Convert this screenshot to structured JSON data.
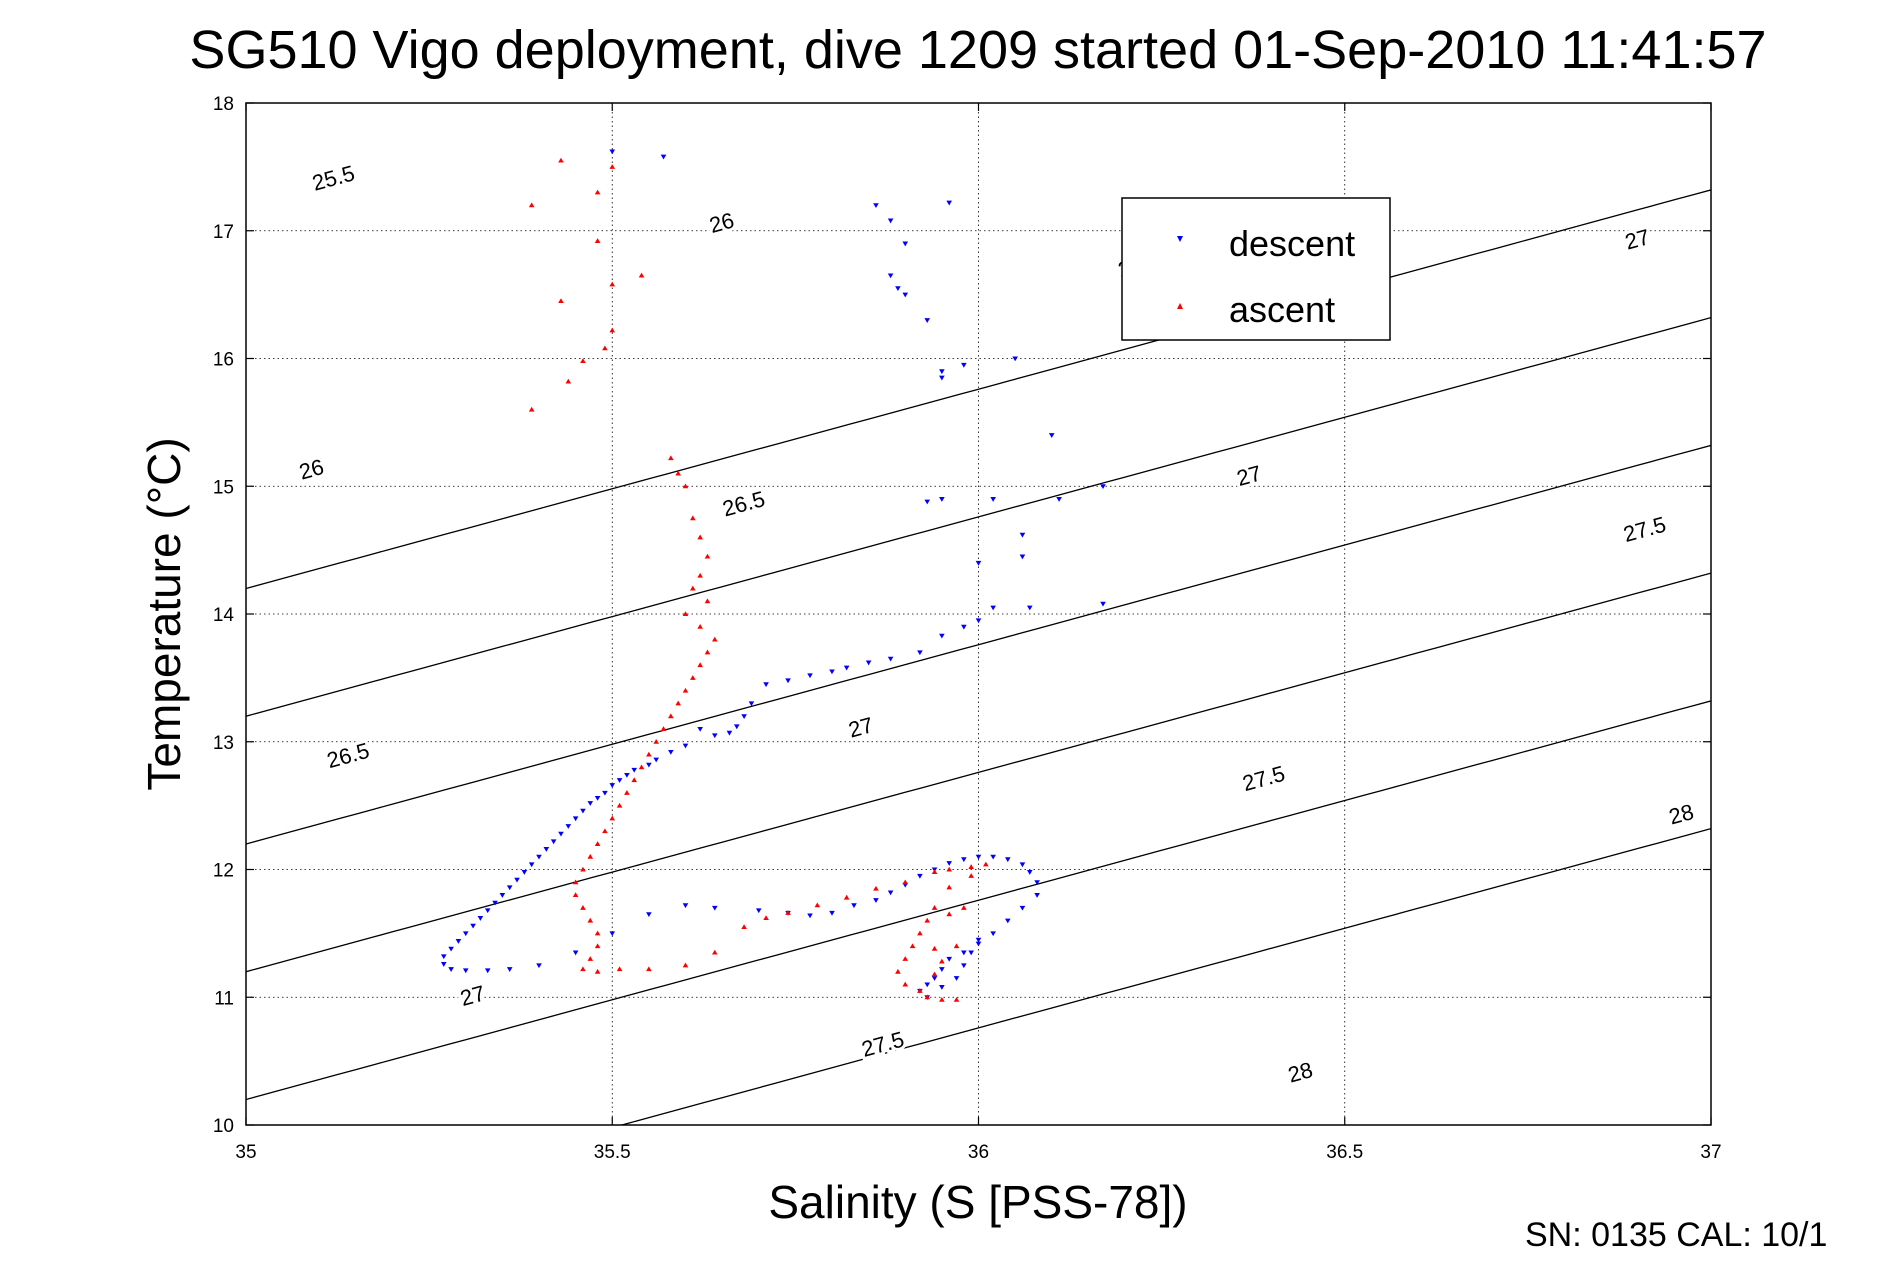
{
  "chart_data": {
    "type": "scatter",
    "title": "SG510 Vigo deployment, dive 1209 started 01-Sep-2010 11:41:57",
    "xlabel": "Salinity (S [PSS-78])",
    "ylabel": "Temperature (°C)",
    "xlim": [
      35,
      37
    ],
    "ylim": [
      10,
      18
    ],
    "xticks": [
      35,
      35.5,
      36,
      36.5,
      37
    ],
    "yticks": [
      10,
      11,
      12,
      13,
      14,
      15,
      16,
      17,
      18
    ],
    "xtick_labels": [
      "35",
      "35.5",
      "36",
      "36.5",
      "37"
    ],
    "ytick_labels": [
      "10",
      "11",
      "12",
      "13",
      "14",
      "15",
      "16",
      "17",
      "18"
    ],
    "grid": true,
    "legend": {
      "placement": "upper-center-right"
    },
    "series": [
      {
        "name": "descent",
        "color": "#0000ff",
        "marker": "triangle-down",
        "points": [
          [
            35.5,
            17.62
          ],
          [
            35.57,
            17.58
          ],
          [
            35.86,
            17.2
          ],
          [
            35.96,
            17.22
          ],
          [
            35.88,
            17.08
          ],
          [
            35.9,
            16.9
          ],
          [
            35.88,
            16.65
          ],
          [
            35.89,
            16.55
          ],
          [
            35.9,
            16.5
          ],
          [
            35.93,
            16.3
          ],
          [
            35.95,
            15.9
          ],
          [
            35.98,
            15.95
          ],
          [
            35.95,
            15.85
          ],
          [
            36.05,
            16.0
          ],
          [
            36.1,
            15.4
          ],
          [
            35.93,
            14.88
          ],
          [
            35.95,
            14.9
          ],
          [
            36.02,
            14.9
          ],
          [
            36.11,
            14.9
          ],
          [
            36.17,
            15.0
          ],
          [
            36.06,
            14.62
          ],
          [
            36.06,
            14.45
          ],
          [
            36.0,
            14.4
          ],
          [
            36.07,
            14.05
          ],
          [
            36.17,
            14.08
          ],
          [
            36.02,
            14.05
          ],
          [
            36.0,
            13.95
          ],
          [
            35.98,
            13.9
          ],
          [
            35.95,
            13.83
          ],
          [
            35.92,
            13.7
          ],
          [
            35.88,
            13.65
          ],
          [
            35.85,
            13.62
          ],
          [
            35.82,
            13.58
          ],
          [
            35.8,
            13.55
          ],
          [
            35.77,
            13.52
          ],
          [
            35.74,
            13.48
          ],
          [
            35.71,
            13.45
          ],
          [
            35.69,
            13.3
          ],
          [
            35.68,
            13.2
          ],
          [
            35.67,
            13.12
          ],
          [
            35.66,
            13.07
          ],
          [
            35.64,
            13.05
          ],
          [
            35.62,
            13.1
          ],
          [
            35.6,
            12.97
          ],
          [
            35.58,
            12.92
          ],
          [
            35.56,
            12.86
          ],
          [
            35.55,
            12.82
          ],
          [
            35.53,
            12.78
          ],
          [
            35.52,
            12.74
          ],
          [
            35.51,
            12.7
          ],
          [
            35.5,
            12.66
          ],
          [
            35.49,
            12.6
          ],
          [
            35.48,
            12.56
          ],
          [
            35.47,
            12.52
          ],
          [
            35.46,
            12.46
          ],
          [
            35.45,
            12.4
          ],
          [
            35.44,
            12.34
          ],
          [
            35.43,
            12.28
          ],
          [
            35.42,
            12.22
          ],
          [
            35.41,
            12.16
          ],
          [
            35.4,
            12.1
          ],
          [
            35.39,
            12.04
          ],
          [
            35.38,
            11.98
          ],
          [
            35.37,
            11.92
          ],
          [
            35.36,
            11.86
          ],
          [
            35.35,
            11.8
          ],
          [
            35.34,
            11.74
          ],
          [
            35.33,
            11.68
          ],
          [
            35.32,
            11.62
          ],
          [
            35.31,
            11.56
          ],
          [
            35.3,
            11.5
          ],
          [
            35.29,
            11.44
          ],
          [
            35.28,
            11.38
          ],
          [
            35.27,
            11.32
          ],
          [
            35.27,
            11.26
          ],
          [
            35.28,
            11.22
          ],
          [
            35.3,
            11.21
          ],
          [
            35.33,
            11.21
          ],
          [
            35.36,
            11.22
          ],
          [
            35.4,
            11.25
          ],
          [
            35.45,
            11.35
          ],
          [
            35.5,
            11.5
          ],
          [
            35.55,
            11.65
          ],
          [
            35.6,
            11.72
          ],
          [
            35.64,
            11.7
          ],
          [
            35.7,
            11.68
          ],
          [
            35.74,
            11.66
          ],
          [
            35.77,
            11.64
          ],
          [
            35.8,
            11.66
          ],
          [
            35.83,
            11.72
          ],
          [
            35.86,
            11.76
          ],
          [
            35.88,
            11.82
          ],
          [
            35.9,
            11.88
          ],
          [
            35.92,
            11.95
          ],
          [
            35.94,
            12.0
          ],
          [
            35.96,
            12.05
          ],
          [
            35.98,
            12.08
          ],
          [
            36.0,
            12.1
          ],
          [
            36.02,
            12.1
          ],
          [
            36.04,
            12.08
          ],
          [
            36.06,
            12.04
          ],
          [
            36.07,
            11.98
          ],
          [
            36.08,
            11.9
          ],
          [
            36.08,
            11.8
          ],
          [
            36.06,
            11.7
          ],
          [
            36.04,
            11.6
          ],
          [
            36.02,
            11.5
          ],
          [
            36.0,
            11.42
          ],
          [
            35.98,
            11.35
          ],
          [
            35.96,
            11.3
          ],
          [
            35.95,
            11.22
          ],
          [
            35.94,
            11.15
          ],
          [
            35.93,
            11.1
          ],
          [
            35.92,
            11.05
          ],
          [
            35.93,
            11.0
          ],
          [
            35.95,
            11.08
          ],
          [
            35.97,
            11.15
          ],
          [
            35.98,
            11.25
          ],
          [
            35.99,
            11.35
          ],
          [
            36.0,
            11.45
          ]
        ]
      },
      {
        "name": "ascent",
        "color": "#ff0000",
        "marker": "triangle-up",
        "points": [
          [
            35.43,
            17.55
          ],
          [
            35.39,
            17.2
          ],
          [
            35.48,
            17.3
          ],
          [
            35.5,
            17.5
          ],
          [
            35.48,
            16.92
          ],
          [
            35.5,
            16.58
          ],
          [
            35.54,
            16.65
          ],
          [
            35.43,
            16.45
          ],
          [
            35.5,
            16.22
          ],
          [
            35.49,
            16.08
          ],
          [
            35.46,
            15.98
          ],
          [
            35.44,
            15.82
          ],
          [
            35.39,
            15.6
          ],
          [
            35.58,
            15.22
          ],
          [
            35.59,
            15.1
          ],
          [
            35.6,
            15.0
          ],
          [
            35.61,
            14.75
          ],
          [
            35.62,
            14.6
          ],
          [
            35.63,
            14.45
          ],
          [
            35.62,
            14.3
          ],
          [
            35.61,
            14.2
          ],
          [
            35.63,
            14.1
          ],
          [
            35.6,
            14.0
          ],
          [
            35.62,
            13.9
          ],
          [
            35.64,
            13.8
          ],
          [
            35.63,
            13.7
          ],
          [
            35.62,
            13.6
          ],
          [
            35.61,
            13.5
          ],
          [
            35.6,
            13.4
          ],
          [
            35.59,
            13.3
          ],
          [
            35.58,
            13.2
          ],
          [
            35.57,
            13.1
          ],
          [
            35.56,
            13.0
          ],
          [
            35.55,
            12.9
          ],
          [
            35.54,
            12.8
          ],
          [
            35.53,
            12.7
          ],
          [
            35.52,
            12.6
          ],
          [
            35.51,
            12.5
          ],
          [
            35.5,
            12.4
          ],
          [
            35.49,
            12.3
          ],
          [
            35.48,
            12.2
          ],
          [
            35.47,
            12.1
          ],
          [
            35.46,
            12.0
          ],
          [
            35.45,
            11.9
          ],
          [
            35.45,
            11.8
          ],
          [
            35.46,
            11.7
          ],
          [
            35.47,
            11.6
          ],
          [
            35.48,
            11.5
          ],
          [
            35.48,
            11.4
          ],
          [
            35.47,
            11.3
          ],
          [
            35.46,
            11.22
          ],
          [
            35.48,
            11.2
          ],
          [
            35.51,
            11.22
          ],
          [
            35.55,
            11.22
          ],
          [
            35.6,
            11.25
          ],
          [
            35.64,
            11.35
          ],
          [
            35.68,
            11.55
          ],
          [
            35.71,
            11.62
          ],
          [
            35.74,
            11.66
          ],
          [
            35.78,
            11.72
          ],
          [
            35.82,
            11.78
          ],
          [
            35.86,
            11.85
          ],
          [
            35.9,
            11.9
          ],
          [
            35.94,
            11.98
          ],
          [
            35.96,
            12.0
          ],
          [
            35.99,
            12.02
          ],
          [
            36.01,
            12.04
          ],
          [
            35.99,
            11.95
          ],
          [
            35.96,
            11.86
          ],
          [
            35.94,
            11.7
          ],
          [
            35.93,
            11.6
          ],
          [
            35.92,
            11.5
          ],
          [
            35.91,
            11.4
          ],
          [
            35.9,
            11.3
          ],
          [
            35.89,
            11.2
          ],
          [
            35.9,
            11.1
          ],
          [
            35.92,
            11.05
          ],
          [
            35.93,
            11.0
          ],
          [
            35.95,
            10.98
          ],
          [
            35.97,
            10.98
          ],
          [
            35.96,
            11.65
          ],
          [
            35.98,
            11.7
          ],
          [
            35.97,
            11.4
          ],
          [
            35.94,
            11.38
          ],
          [
            35.95,
            11.28
          ],
          [
            35.94,
            11.18
          ]
        ]
      }
    ],
    "contours": [
      {
        "value": 25.5,
        "labels": [
          {
            "text": "25.5",
            "x": 35.12,
            "y": 17.4
          }
        ]
      },
      {
        "value": 26,
        "labels": [
          {
            "text": "26",
            "x": 35.09,
            "y": 15.12
          },
          {
            "text": "26",
            "x": 35.65,
            "y": 17.05
          }
        ]
      },
      {
        "value": 26.5,
        "labels": [
          {
            "text": "26.5",
            "x": 35.14,
            "y": 12.88
          },
          {
            "text": "26.5",
            "x": 35.68,
            "y": 14.85
          },
          {
            "text": "26.5",
            "x": 36.22,
            "y": 16.72
          }
        ]
      },
      {
        "value": 27,
        "labels": [
          {
            "text": "27",
            "x": 35.31,
            "y": 11.0
          },
          {
            "text": "27",
            "x": 35.84,
            "y": 13.1
          },
          {
            "text": "27",
            "x": 36.37,
            "y": 15.07
          },
          {
            "text": "27",
            "x": 36.9,
            "y": 16.92
          }
        ]
      },
      {
        "value": 27.5,
        "labels": [
          {
            "text": "27.5",
            "x": 35.87,
            "y": 10.62
          },
          {
            "text": "27.5",
            "x": 36.39,
            "y": 12.7
          },
          {
            "text": "27.5",
            "x": 36.91,
            "y": 14.65
          }
        ]
      },
      {
        "value": 28,
        "labels": [
          {
            "text": "28",
            "x": 36.44,
            "y": 10.4
          },
          {
            "text": "28",
            "x": 36.96,
            "y": 12.42
          }
        ]
      }
    ]
  },
  "footer": {
    "serial_text": "SN: 0135  CAL: 10/1"
  }
}
